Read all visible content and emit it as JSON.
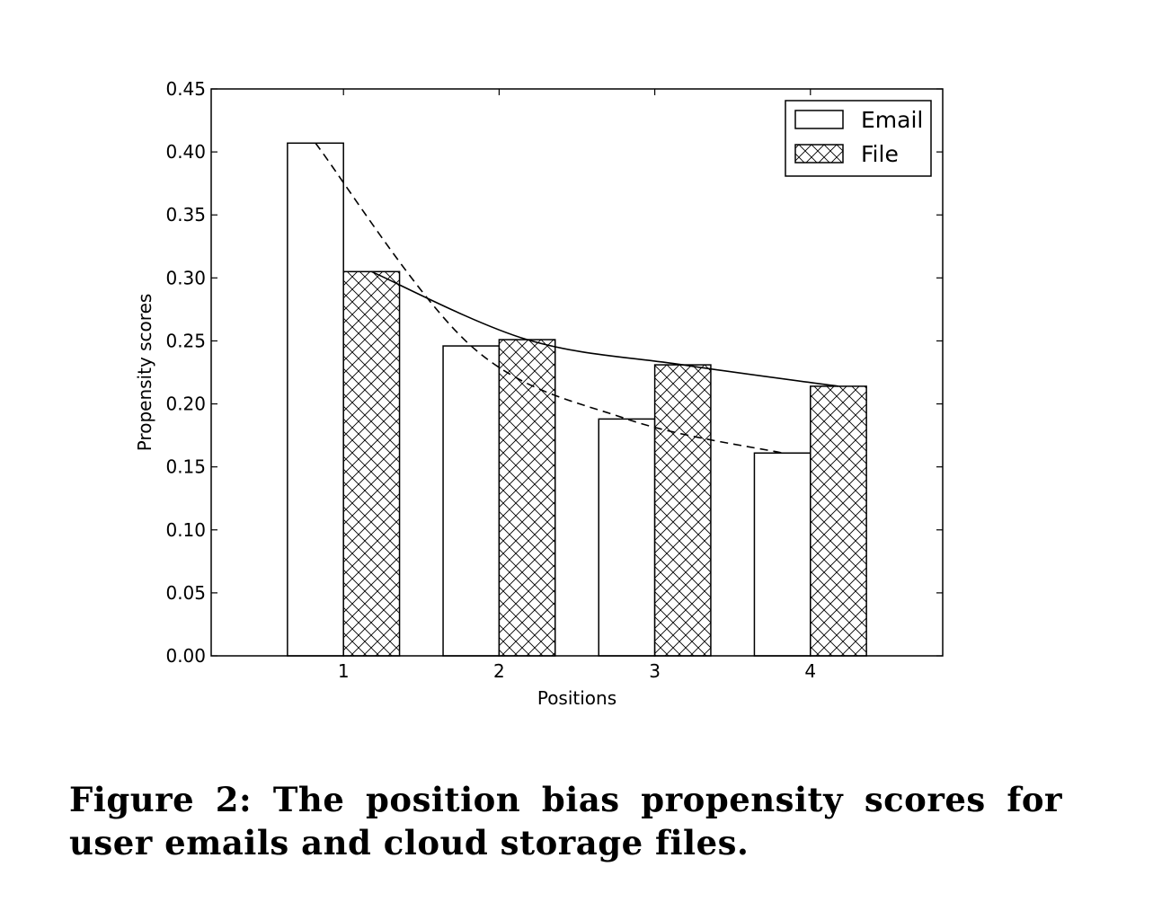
{
  "chart_data": {
    "type": "bar",
    "title": "",
    "xlabel": "Positions",
    "ylabel": "Propensity scores",
    "categories": [
      "1",
      "2",
      "3",
      "4"
    ],
    "ylim": [
      0,
      0.45
    ],
    "yticks": [
      "0.00",
      "0.05",
      "0.10",
      "0.15",
      "0.20",
      "0.25",
      "0.30",
      "0.35",
      "0.40",
      "0.45"
    ],
    "legend_position": "top-right",
    "grid": false,
    "series": [
      {
        "name": "Email",
        "values": [
          0.407,
          0.246,
          0.188,
          0.161
        ],
        "fill": "white",
        "trend_line": "dashed"
      },
      {
        "name": "File",
        "values": [
          0.305,
          0.251,
          0.231,
          0.214
        ],
        "fill": "crosshatch",
        "trend_line": "solid"
      }
    ]
  },
  "caption": "Figure 2:  The position bias propensity scores for user emails and cloud storage files."
}
